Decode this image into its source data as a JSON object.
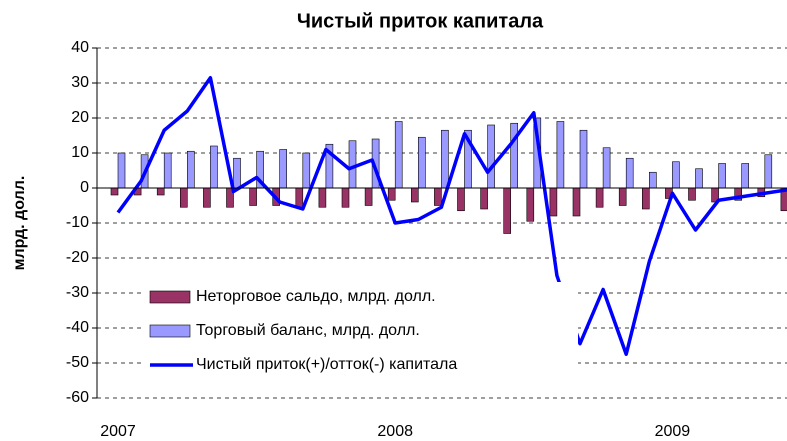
{
  "chart_data": {
    "type": "bar-line",
    "title": "Чистый приток капитала",
    "y_label": "млрд. долл.",
    "categories": [
      "2007",
      null,
      null,
      null,
      null,
      null,
      null,
      null,
      null,
      null,
      null,
      null,
      "2008",
      null,
      null,
      null,
      null,
      null,
      null,
      null,
      null,
      null,
      null,
      null,
      "2009",
      null,
      null,
      null,
      null,
      null
    ],
    "series": [
      {
        "name": "Неторговое сальдо, млрд. долл.",
        "type": "bar",
        "color": "#993366",
        "values": [
          -2,
          -2,
          -2,
          -5.5,
          -5.5,
          -5.5,
          -5,
          -5,
          -5.5,
          -5.5,
          -5.5,
          -5,
          -3.5,
          -4,
          -5,
          -6.5,
          -6,
          -13,
          -9.5,
          -8,
          -8,
          -5.5,
          -5,
          -6,
          -3,
          -3.5,
          -4,
          -3.5,
          -2.5,
          -6.5
        ]
      },
      {
        "name": "Торговый баланс, млрд. долл.",
        "type": "bar",
        "color": "#9999ff",
        "values": [
          10,
          9.5,
          10,
          10.5,
          12,
          8.5,
          10.5,
          11,
          10,
          12.5,
          13.5,
          14,
          19,
          14.5,
          16.5,
          16.5,
          18,
          18.5,
          20,
          19,
          16.5,
          11.5,
          8.5,
          4.5,
          7.5,
          5.5,
          7,
          7,
          9.5,
          null
        ]
      },
      {
        "name": "Чистый приток(+)/отток(-) капитала",
        "type": "line",
        "color": "#0000ff",
        "values": [
          -7,
          2,
          16.5,
          22,
          31.5,
          -1,
          3,
          -4,
          -6,
          11,
          5.5,
          8,
          -10,
          -9,
          -5.5,
          15.5,
          4.5,
          12.5,
          21.5,
          -25,
          -44.5,
          -29,
          -47.5,
          -21,
          -1.5,
          -12,
          -3.5,
          -2.5,
          -1.5,
          -0.5
        ]
      }
    ],
    "ylim": [
      -60,
      40
    ],
    "yticks": [
      -60,
      -50,
      -40,
      -30,
      -20,
      -10,
      0,
      10,
      20,
      30,
      40
    ],
    "grid": true
  }
}
